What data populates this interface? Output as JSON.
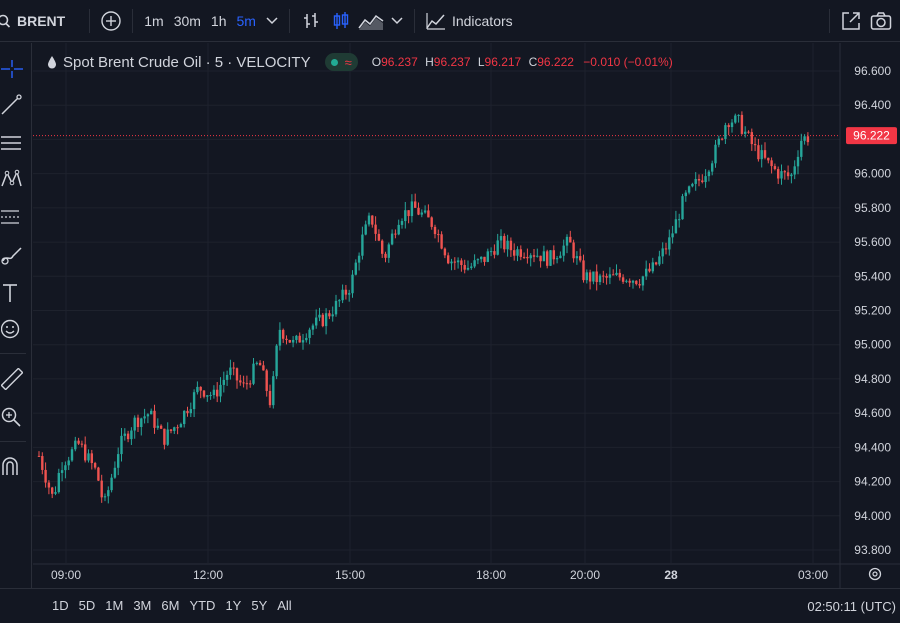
{
  "toolbar": {
    "symbol": "BRENT",
    "intervals": [
      {
        "label": "1m",
        "active": false
      },
      {
        "label": "30m",
        "active": false
      },
      {
        "label": "1h",
        "active": false
      },
      {
        "label": "5m",
        "active": true
      }
    ],
    "indicators_label": "Indicators"
  },
  "legend": {
    "title": "Spot Brent Crude Oil · 5 · VELOCITY",
    "pill_icon": "≈",
    "open_label": "O",
    "open": "96.237",
    "high_label": "H",
    "high": "96.237",
    "low_label": "L",
    "low": "96.217",
    "close_label": "C",
    "close": "96.222",
    "change": "−0.010 (−0.01%)"
  },
  "price_axis": {
    "labels": [
      "96.600",
      "96.400",
      "96.200",
      "96.000",
      "95.800",
      "95.600",
      "95.400",
      "95.200",
      "95.000",
      "94.800",
      "94.600",
      "94.400",
      "94.200",
      "94.000",
      "93.800"
    ],
    "current_price": "96.222"
  },
  "time_axis": {
    "labels": [
      "09:00",
      "12:00",
      "15:00",
      "18:00",
      "20:00",
      "28",
      "03:00"
    ]
  },
  "ranges": [
    "1D",
    "5D",
    "1M",
    "3M",
    "6M",
    "YTD",
    "1Y",
    "5Y",
    "All"
  ],
  "clock": "02:50:11 (UTC)",
  "colors": {
    "up": "#26a69a",
    "down": "#ef5350",
    "bg": "#131722",
    "accent": "#2962ff"
  }
}
